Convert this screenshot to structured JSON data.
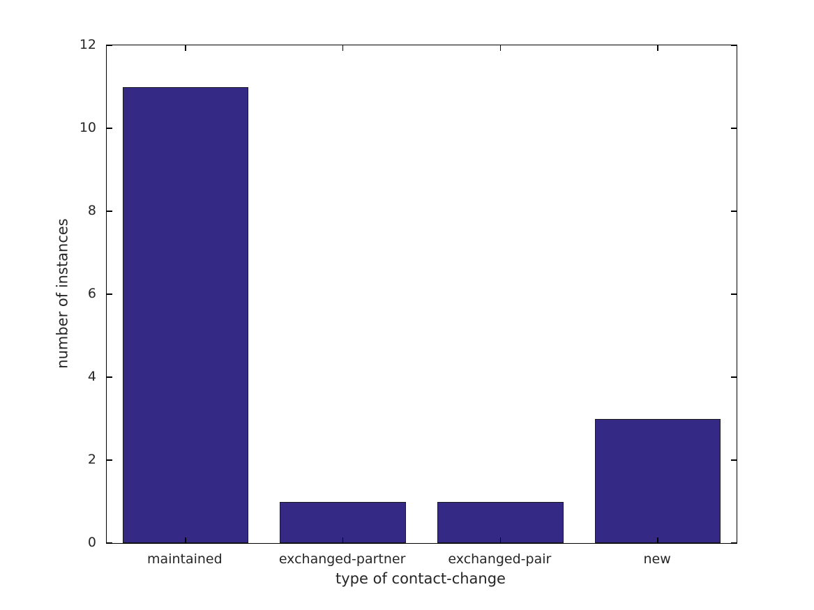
{
  "chart_data": {
    "type": "bar",
    "categories": [
      "maintained",
      "exchanged-partner",
      "exchanged-pair",
      "new"
    ],
    "values": [
      11,
      1,
      1,
      3
    ],
    "title": "",
    "xlabel": "type of contact-change",
    "ylabel": "number of instances",
    "ylim": [
      0,
      12
    ],
    "yticks": [
      0,
      2,
      4,
      6,
      8,
      10,
      12
    ],
    "bar_width_fraction": 0.8,
    "grid": false,
    "legend": null,
    "colors": {
      "bar_fill": "#342a86",
      "bar_edge": "#1a1a1a",
      "axis_line": "#000000",
      "text": "#262626",
      "background": "#ffffff"
    }
  }
}
